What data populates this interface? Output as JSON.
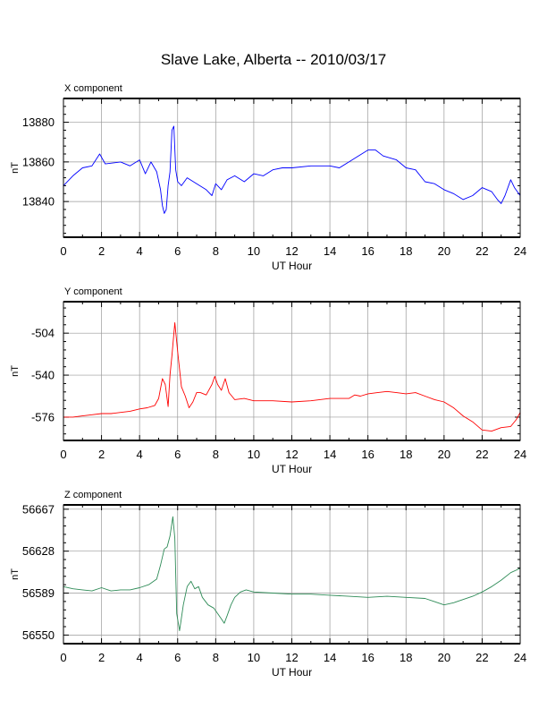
{
  "title": "Slave Lake, Alberta -- 2010/03/17",
  "chart_data": [
    {
      "type": "line",
      "panel_label": "X component",
      "xlabel": "UT Hour",
      "ylabel": "nT",
      "xlim": [
        0,
        24
      ],
      "ylim": [
        13822,
        13892
      ],
      "xticks": [
        0,
        2,
        4,
        6,
        8,
        10,
        12,
        14,
        16,
        18,
        20,
        22,
        24
      ],
      "yticks": [
        13840,
        13860,
        13880
      ],
      "grid": true,
      "series": [
        {
          "color": "#0000ff",
          "x": [
            0,
            0.5,
            1,
            1.5,
            1.9,
            2.2,
            3,
            3.5,
            4,
            4.3,
            4.6,
            4.9,
            5.1,
            5.2,
            5.3,
            5.4,
            5.5,
            5.6,
            5.7,
            5.8,
            5.9,
            6.0,
            6.2,
            6.5,
            7,
            7.5,
            7.8,
            8,
            8.3,
            8.6,
            9,
            9.5,
            10,
            10.5,
            11,
            11.5,
            12,
            13,
            14,
            14.5,
            15,
            15.5,
            16,
            16.4,
            16.8,
            17.5,
            18,
            18.5,
            19,
            19.5,
            20,
            20.5,
            21,
            21.5,
            22,
            22.5,
            22.8,
            23,
            23.2,
            23.5,
            23.7,
            24
          ],
          "y": [
            13848,
            13853,
            13857,
            13858,
            13864,
            13859,
            13860,
            13858,
            13861,
            13854,
            13860,
            13855,
            13846,
            13838,
            13834,
            13836,
            13848,
            13855,
            13876,
            13878,
            13856,
            13850,
            13848,
            13852,
            13849,
            13846,
            13843,
            13849,
            13846,
            13851,
            13853,
            13850,
            13854,
            13853,
            13856,
            13857,
            13857,
            13858,
            13858,
            13857,
            13860,
            13863,
            13866,
            13866,
            13863,
            13861,
            13857,
            13856,
            13850,
            13849,
            13846,
            13844,
            13841,
            13843,
            13847,
            13845,
            13841,
            13839,
            13843,
            13851,
            13847,
            13843
          ]
        }
      ]
    },
    {
      "type": "line",
      "panel_label": "Y component",
      "xlabel": "UT Hour",
      "ylabel": "nT",
      "xlim": [
        0,
        24
      ],
      "ylim": [
        -596,
        -477
      ],
      "xticks": [
        0,
        2,
        4,
        6,
        8,
        10,
        12,
        14,
        16,
        18,
        20,
        22,
        24
      ],
      "yticks": [
        -504,
        -540,
        -576
      ],
      "grid": true,
      "series": [
        {
          "color": "#ff0000",
          "x": [
            0,
            0.5,
            1,
            1.5,
            2,
            2.5,
            3,
            3.5,
            4,
            4.4,
            4.8,
            5.0,
            5.2,
            5.35,
            5.5,
            5.6,
            5.7,
            5.85,
            6.0,
            6.2,
            6.4,
            6.6,
            6.8,
            7.0,
            7.2,
            7.5,
            7.8,
            7.95,
            8.1,
            8.3,
            8.5,
            8.7,
            9.0,
            9.5,
            10,
            11,
            12,
            13,
            14,
            15,
            15.3,
            15.6,
            16,
            16.5,
            17,
            17.5,
            18,
            18.5,
            19,
            19.5,
            20,
            20.5,
            21,
            21.5,
            22,
            22.5,
            23,
            23.5,
            23.8,
            24
          ],
          "y": [
            -576,
            -576,
            -575,
            -574,
            -573,
            -573,
            -572,
            -571,
            -569,
            -568,
            -566,
            -560,
            -543,
            -548,
            -567,
            -540,
            -523,
            -495,
            -520,
            -550,
            -558,
            -568,
            -563,
            -555,
            -555,
            -557,
            -548,
            -541,
            -548,
            -553,
            -543,
            -555,
            -561,
            -560,
            -562,
            -562,
            -563,
            -562,
            -560,
            -560,
            -557,
            -558,
            -556,
            -555,
            -554,
            -555,
            -556,
            -555,
            -558,
            -561,
            -563,
            -568,
            -575,
            -580,
            -587,
            -588,
            -585,
            -584,
            -578,
            -572
          ]
        }
      ]
    },
    {
      "type": "line",
      "panel_label": "Z component",
      "xlabel": "UT Hour",
      "ylabel": "nT",
      "xlim": [
        0,
        24
      ],
      "ylim": [
        56542,
        56671
      ],
      "xticks": [
        0,
        2,
        4,
        6,
        8,
        10,
        12,
        14,
        16,
        18,
        20,
        22,
        24
      ],
      "yticks": [
        56550,
        56589,
        56628,
        56667
      ],
      "grid": true,
      "series": [
        {
          "color": "#2e8b57",
          "x": [
            0,
            0.5,
            1,
            1.5,
            2,
            2.5,
            3,
            3.5,
            4,
            4.5,
            4.9,
            5.1,
            5.3,
            5.45,
            5.6,
            5.75,
            5.85,
            5.95,
            6.1,
            6.3,
            6.5,
            6.7,
            6.9,
            7.1,
            7.3,
            7.6,
            7.9,
            8.1,
            8.3,
            8.45,
            8.6,
            8.8,
            9.0,
            9.3,
            9.6,
            10,
            11,
            12,
            13,
            14,
            15,
            16,
            17,
            18,
            19,
            19.5,
            20,
            20.5,
            21,
            21.5,
            22,
            22.5,
            23,
            23.5,
            24
          ],
          "y": [
            56595,
            56593,
            56592,
            56591,
            56594,
            56591,
            56592,
            56592,
            56594,
            56597,
            56602,
            56615,
            56630,
            56632,
            56642,
            56660,
            56640,
            56570,
            56554,
            56578,
            56595,
            56600,
            56593,
            56595,
            56585,
            56578,
            56575,
            56570,
            56565,
            56561,
            56568,
            56578,
            56585,
            56590,
            56592,
            56590,
            56589,
            56588,
            56588,
            56587,
            56586,
            56585,
            56586,
            56585,
            56584,
            56581,
            56578,
            56580,
            56583,
            56586,
            56590,
            56595,
            56601,
            56608,
            56612
          ]
        }
      ]
    }
  ]
}
